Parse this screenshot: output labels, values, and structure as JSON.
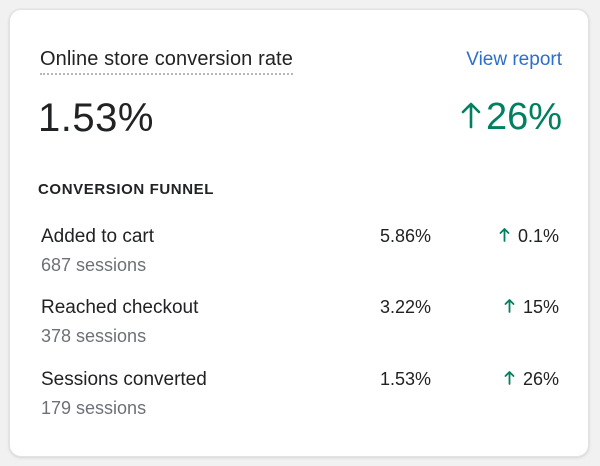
{
  "card": {
    "title": "Online store conversion rate",
    "view_report_label": "View report",
    "value": "1.53%",
    "change": "26%",
    "change_direction": "up",
    "accent_color": "#008060",
    "link_color": "#2c6ecb",
    "section_label": "CONVERSION FUNNEL"
  },
  "funnel": [
    {
      "label": "Added to cart",
      "sessions": "687 sessions",
      "rate": "5.86%",
      "change": "0.1%",
      "direction": "up"
    },
    {
      "label": "Reached checkout",
      "sessions": "378 sessions",
      "rate": "3.22%",
      "change": "15%",
      "direction": "up"
    },
    {
      "label": "Sessions converted",
      "sessions": "179 sessions",
      "rate": "1.53%",
      "change": "26%",
      "direction": "up"
    }
  ],
  "icons": {
    "trend": "arrow-up-icon"
  }
}
